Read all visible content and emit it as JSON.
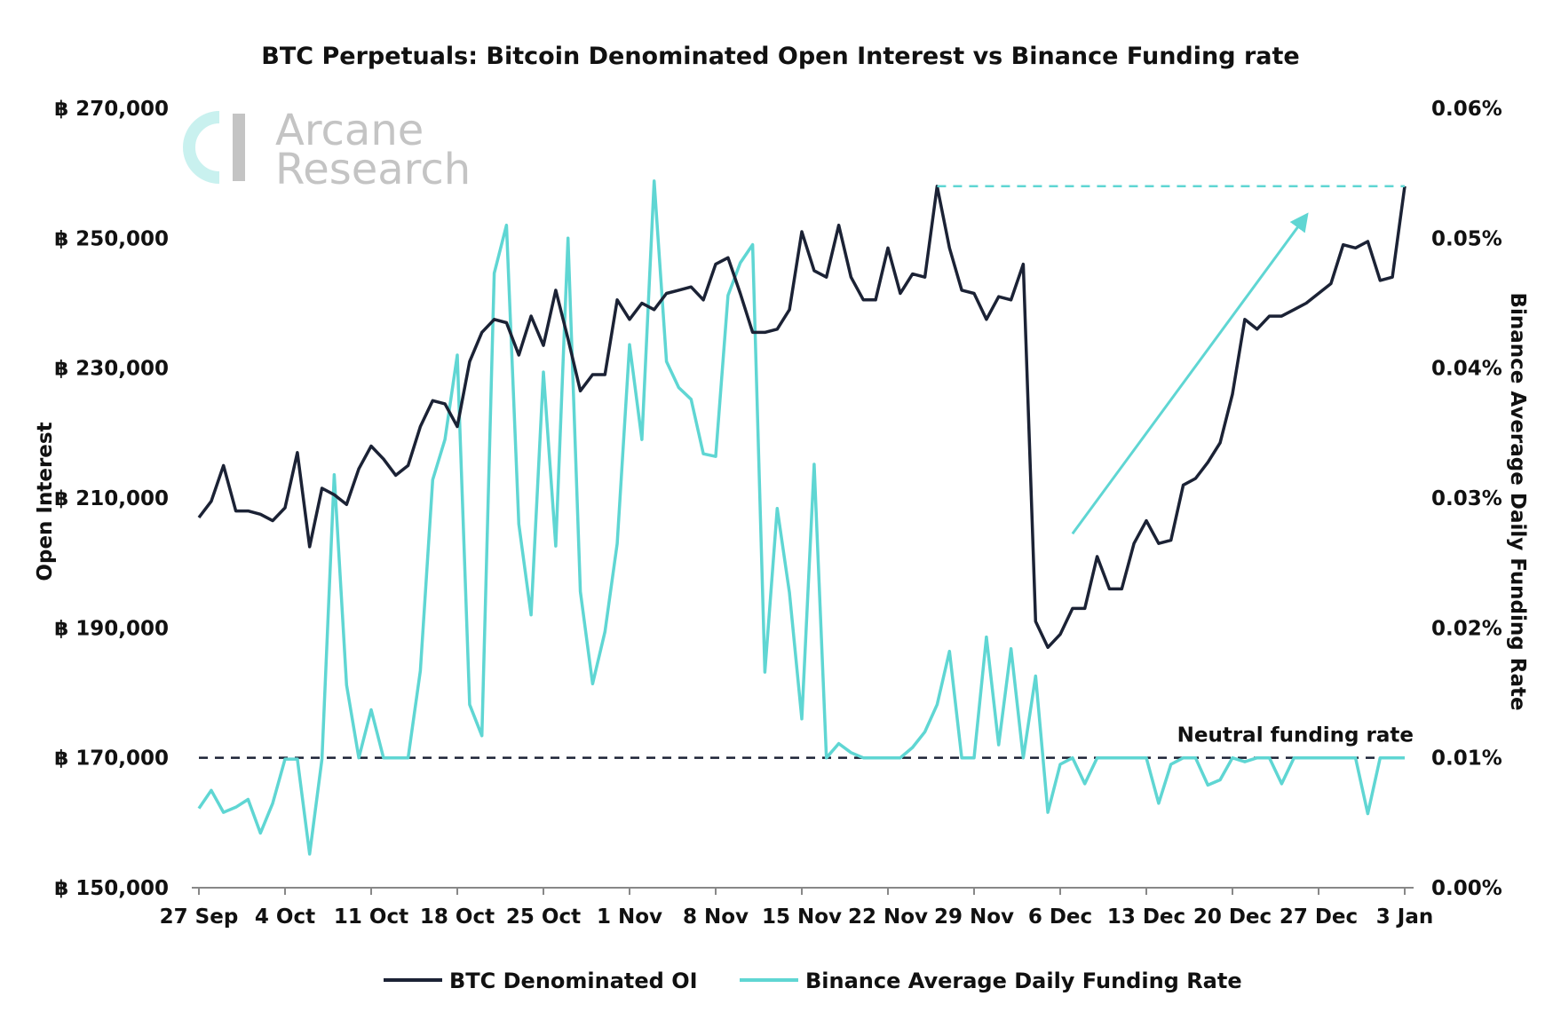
{
  "chart_data": {
    "type": "line",
    "title": "BTC Perpetuals: Bitcoin Denominated Open Interest vs Binance Funding rate",
    "watermark": [
      "Arcane",
      "Research"
    ],
    "xlabels": [
      "27 Sep",
      "4 Oct",
      "11 Oct",
      "18 Oct",
      "25 Oct",
      "1 Nov",
      "8 Nov",
      "15 Nov",
      "22 Nov",
      "29 Nov",
      "6 Dec",
      "13 Dec",
      "20 Dec",
      "27 Dec",
      "3 Jan"
    ],
    "y_left": {
      "label": "Open Interest",
      "range": [
        150000,
        270000
      ],
      "ticks": [
        150000,
        170000,
        190000,
        210000,
        230000,
        250000,
        270000
      ],
      "tick_labels": [
        "฿ 150,000",
        "฿ 170,000",
        "฿ 190,000",
        "฿ 210,000",
        "฿ 230,000",
        "฿ 250,000",
        "฿ 270,000"
      ]
    },
    "y_right": {
      "label": "Binance Average Daily Funding Rate",
      "range": [
        0,
        0.06
      ],
      "ticks": [
        0,
        0.01,
        0.02,
        0.03,
        0.04,
        0.05,
        0.06
      ],
      "tick_labels": [
        "0.00%",
        "0.01%",
        "0.02%",
        "0.03%",
        "0.04%",
        "0.05%",
        "0.06%"
      ]
    },
    "series": [
      {
        "name": "BTC Denominated OI",
        "axis": "left",
        "color": "#1b2235",
        "values": [
          207000,
          209500,
          215000,
          208000,
          208000,
          207500,
          206500,
          208500,
          217000,
          202500,
          211500,
          210500,
          209000,
          214500,
          218000,
          216000,
          213500,
          215000,
          221000,
          225000,
          224500,
          221000,
          231000,
          235500,
          237500,
          237000,
          232000,
          238000,
          233500,
          242000,
          234500,
          226500,
          229000,
          229000,
          240500,
          237500,
          240000,
          239000,
          241500,
          242000,
          242500,
          240500,
          246000,
          247000,
          241500,
          235500,
          235500,
          236000,
          239000,
          251000,
          245000,
          244000,
          252000,
          244000,
          240500,
          240500,
          248500,
          241500,
          244500,
          244000,
          258000,
          248500,
          242000,
          241500,
          237500,
          241000,
          240500,
          246000,
          191000,
          187000,
          189000,
          193000,
          193000,
          201000,
          196000,
          196000,
          203000,
          206500,
          203000,
          203500,
          212000,
          213000,
          215500,
          218500,
          226000,
          237500,
          236000,
          238000,
          238000,
          239000,
          240000,
          241500,
          243000,
          249000,
          248500,
          249500,
          243500,
          244000,
          258000
        ]
      },
      {
        "name": "Binance Average Daily Funding Rate",
        "axis": "right",
        "color": "#5fd6d3",
        "values": [
          0.0061,
          0.0075,
          0.0058,
          0.0062,
          0.0068,
          0.0042,
          0.0065,
          0.0099,
          0.0099,
          0.0026,
          0.0099,
          0.0318,
          0.0156,
          0.01,
          0.0137,
          0.01,
          0.01,
          0.01,
          0.0167,
          0.0314,
          0.0345,
          0.041,
          0.0141,
          0.0117,
          0.0473,
          0.051,
          0.028,
          0.021,
          0.0397,
          0.0263,
          0.05,
          0.0228,
          0.0157,
          0.0197,
          0.0265,
          0.0418,
          0.0345,
          0.0544,
          0.0405,
          0.0385,
          0.0376,
          0.0334,
          0.0332,
          0.0456,
          0.0481,
          0.0495,
          0.0166,
          0.0292,
          0.0227,
          0.013,
          0.0326,
          0.01,
          0.0111,
          0.0104,
          0.01,
          0.01,
          0.01,
          0.01,
          0.0108,
          0.012,
          0.0141,
          0.0182,
          0.01,
          0.01,
          0.0193,
          0.011,
          0.0184,
          0.01,
          0.0163,
          0.0058,
          0.0095,
          0.01,
          0.008,
          0.01,
          0.01,
          0.01,
          0.01,
          0.01,
          0.0065,
          0.0095,
          0.01,
          0.01,
          0.0079,
          0.0083,
          0.01,
          0.0097,
          0.01,
          0.01,
          0.008,
          0.01,
          0.01,
          0.01,
          0.01,
          0.01,
          0.01,
          0.0057,
          0.01,
          0.01,
          0.01
        ]
      }
    ],
    "annotations": {
      "neutral_label": "Neutral funding rate",
      "neutral_value": 0.01
    },
    "legend": {
      "position": "bottom"
    },
    "grid": false
  }
}
